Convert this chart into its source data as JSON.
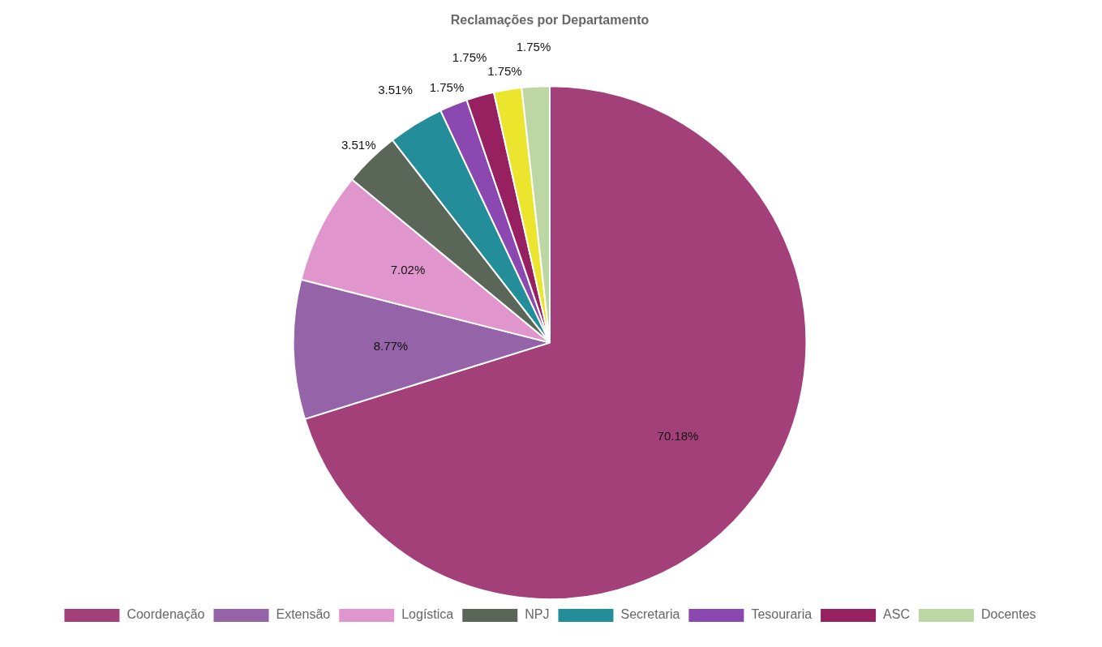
{
  "chart_data": {
    "type": "pie",
    "title": "Reclamações por Departamento",
    "categories": [
      "Coordenação",
      "Extensão",
      "Logística",
      "NPJ",
      "Secretaria",
      "Tesouraria",
      "ASC",
      null,
      "Docentes"
    ],
    "values": [
      70.18,
      8.77,
      7.02,
      3.51,
      3.51,
      1.75,
      1.75,
      1.75,
      1.75
    ],
    "colors": [
      "#a3407a",
      "#9563a8",
      "#e096cc",
      "#5a6758",
      "#238e9a",
      "#8a48b0",
      "#962060",
      "#ebe52e",
      "#bcd6a4"
    ],
    "value_labels": [
      "70.18%",
      "8.77%",
      "7.02%",
      "3.51%",
      "3.51%",
      "1.75%",
      "1.75%",
      "1.75%",
      "1.75%"
    ],
    "legend": "bottom"
  }
}
